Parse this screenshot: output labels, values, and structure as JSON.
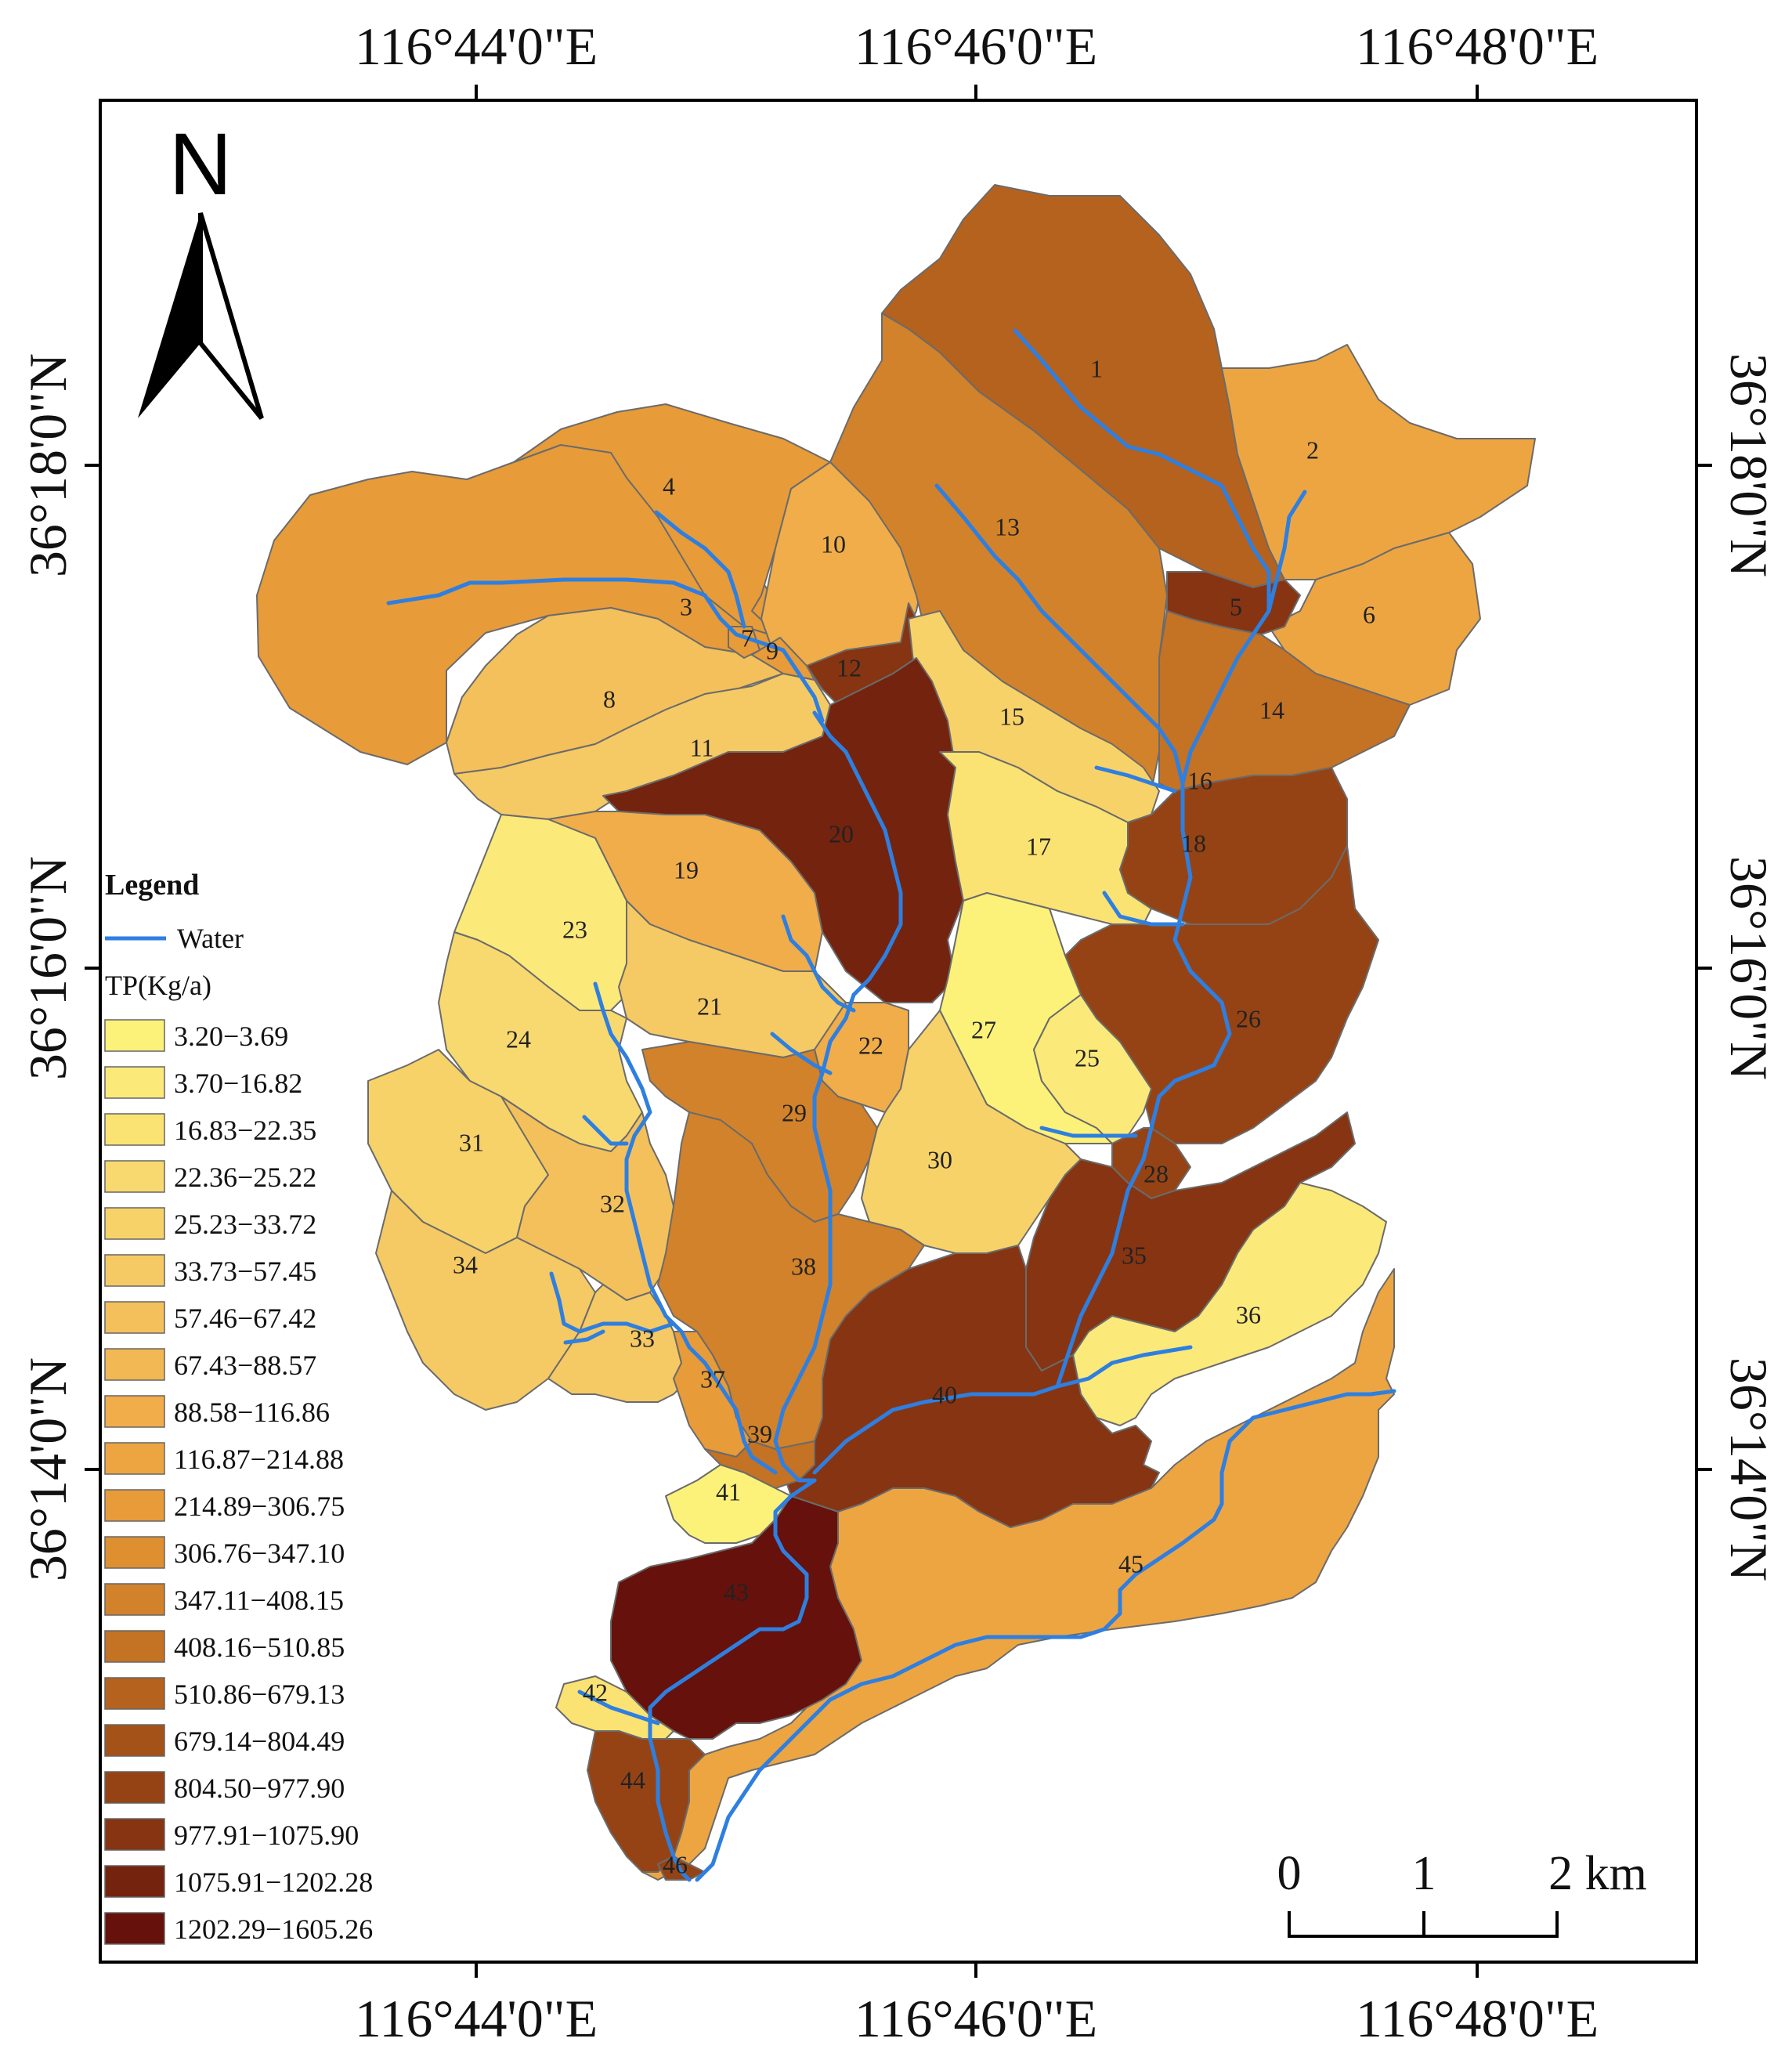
{
  "map": {
    "top_longitudes": [
      "116°44'0\"E",
      "116°46'0\"E",
      "116°48'0\"E"
    ],
    "bottom_longitudes": [
      "116°44'0\"E",
      "116°46'0\"E",
      "116°48'0\"E"
    ],
    "left_latitudes": [
      "36°18'0\"N",
      "36°16'0\"N",
      "36°14'0\"N"
    ],
    "right_latitudes": [
      "36°18'0\"N",
      "36°16'0\"N",
      "36°14'0\"N"
    ],
    "north_label": "N",
    "subbasin_labels": [
      "1",
      "2",
      "3",
      "4",
      "5",
      "6",
      "7",
      "8",
      "9",
      "10",
      "11",
      "12",
      "13",
      "14",
      "15",
      "16",
      "17",
      "18",
      "19",
      "20",
      "21",
      "22",
      "23",
      "24",
      "25",
      "26",
      "27",
      "28",
      "29",
      "30",
      "31",
      "32",
      "33",
      "34",
      "35",
      "36",
      "37",
      "38",
      "39",
      "40",
      "41",
      "42",
      "43",
      "44",
      "45",
      "46"
    ],
    "scale": {
      "ticks": [
        "0",
        "1",
        "2 km"
      ]
    }
  },
  "legend": {
    "title": "Legend",
    "water_label": "Water",
    "tp_title": "TP(Kg/a)",
    "classes": [
      {
        "label": "3.20−3.69",
        "color": "#fcf27a"
      },
      {
        "label": "3.70−16.82",
        "color": "#fbe97a"
      },
      {
        "label": "16.83−22.35",
        "color": "#fae373"
      },
      {
        "label": "22.36−25.22",
        "color": "#f8d970"
      },
      {
        "label": "25.23−33.72",
        "color": "#f7d269"
      },
      {
        "label": "33.73−57.45",
        "color": "#f5c964"
      },
      {
        "label": "57.46−67.42",
        "color": "#f4c05c"
      },
      {
        "label": "67.43−88.57",
        "color": "#f2b853"
      },
      {
        "label": "88.58−116.86",
        "color": "#f0ad4a"
      },
      {
        "label": "116.87−214.88",
        "color": "#eda542"
      },
      {
        "label": "214.89−306.75",
        "color": "#e79b39"
      },
      {
        "label": "306.76−347.10",
        "color": "#de9031"
      },
      {
        "label": "347.11−408.15",
        "color": "#d2822a"
      },
      {
        "label": "408.16−510.85",
        "color": "#c47224"
      },
      {
        "label": "510.86−679.13",
        "color": "#b5621e"
      },
      {
        "label": "679.14−804.49",
        "color": "#a55219"
      },
      {
        "label": "804.50−977.90",
        "color": "#954315"
      },
      {
        "label": "977.91−1075.90",
        "color": "#863412"
      },
      {
        "label": "1075.91−1202.28",
        "color": "#74230e"
      },
      {
        "label": "1202.29−1605.26",
        "color": "#66110b"
      }
    ]
  },
  "colors": {
    "water": "#2e7fe0",
    "subbasin_border": "#6b6b6b",
    "frame": "#000000"
  }
}
